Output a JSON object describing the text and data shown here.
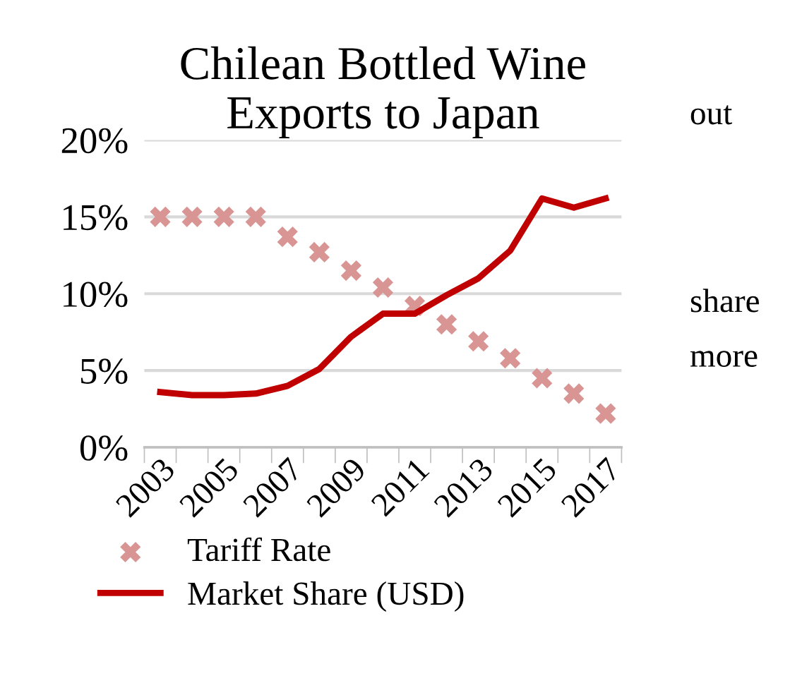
{
  "chart_data": {
    "type": "line",
    "title": "Chilean Bottled Wine\nExports to Japan",
    "categories": [
      "2003",
      null,
      "2005",
      null,
      "2007",
      null,
      "2009",
      null,
      "2011",
      null,
      "2013",
      null,
      "2015",
      null,
      "2017"
    ],
    "series": [
      {
        "name": "Tariff Rate",
        "type": "scatter",
        "marker": "cross",
        "color": "#d99594",
        "values": [
          15,
          15,
          15,
          15,
          13.7,
          12.7,
          11.5,
          10.4,
          9.2,
          8.0,
          6.9,
          5.8,
          4.5,
          3.5,
          2.2
        ]
      },
      {
        "name": "Market Share (USD)",
        "marker": "none",
        "color": "#c00000",
        "values": [
          3.6,
          3.4,
          3.4,
          3.5,
          4.0,
          5.1,
          7.2,
          8.7,
          8.7,
          9.9,
          11.0,
          12.8,
          16.2,
          15.6,
          16.2
        ]
      }
    ],
    "ylim": [
      0,
      20
    ],
    "yticks": [
      {
        "value": 0,
        "label": "0%"
      },
      {
        "value": 5,
        "label": "5%"
      },
      {
        "value": 10,
        "label": "10%"
      },
      {
        "value": 15,
        "label": "15%"
      },
      {
        "value": 20,
        "label": "20%"
      }
    ],
    "grid": "y",
    "legend": "bottom",
    "annotations": [
      "out",
      "share",
      "more"
    ]
  }
}
